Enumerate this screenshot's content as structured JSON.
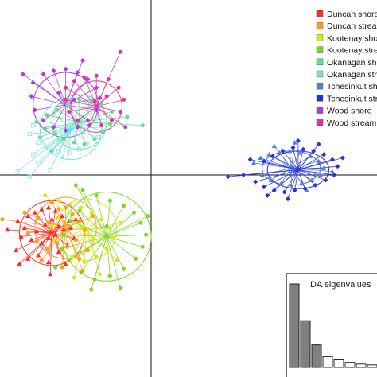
{
  "chart_data": {
    "type": "scatter",
    "grid": false,
    "axes": "crossing at origin, no tick labels",
    "legend_position": "top-right",
    "series": [
      {
        "name": "Duncan shore",
        "color": "#ff2a2a",
        "marker": "triangle",
        "centroid": [
          -2.9,
          -1.7
        ],
        "ellipse": [
          0.95,
          0.95
        ],
        "points": [
          [
            -3.9,
            -1.35
          ],
          [
            -3.6,
            -1.2
          ],
          [
            -3.4,
            -1.1
          ],
          [
            -3.2,
            -1.0
          ],
          [
            -3.0,
            -0.95
          ],
          [
            -2.8,
            -1.05
          ],
          [
            -2.6,
            -1.2
          ],
          [
            -2.4,
            -1.35
          ],
          [
            -3.8,
            -1.8
          ],
          [
            -3.5,
            -1.9
          ],
          [
            -3.2,
            -2.0
          ],
          [
            -3.0,
            -1.85
          ],
          [
            -2.8,
            -1.75
          ],
          [
            -2.55,
            -1.6
          ],
          [
            -2.35,
            -1.55
          ],
          [
            -3.95,
            -2.2
          ],
          [
            -3.6,
            -2.45
          ],
          [
            -3.3,
            -2.35
          ],
          [
            -3.0,
            -2.55
          ],
          [
            -2.7,
            -2.25
          ],
          [
            -2.45,
            -2.05
          ],
          [
            -2.25,
            -1.85
          ],
          [
            -4.2,
            -1.6
          ],
          [
            -3.7,
            -1.55
          ],
          [
            -3.1,
            -1.45
          ],
          [
            -2.9,
            -1.3
          ],
          [
            -2.7,
            -1.5
          ],
          [
            -3.35,
            -1.65
          ],
          [
            -2.5,
            -2.6
          ],
          [
            -3.85,
            -2.6
          ],
          [
            -2.2,
            -1.3
          ],
          [
            -2.95,
            -2.9
          ]
        ]
      },
      {
        "name": "Duncan stream",
        "color": "#ff9a1a",
        "marker": "circle",
        "centroid": [
          -2.5,
          -1.55
        ],
        "ellipse": [
          0.9,
          0.9
        ],
        "points": [
          [
            -4.35,
            -1.3
          ],
          [
            -3.7,
            -1.1
          ],
          [
            -3.3,
            -1.25
          ],
          [
            -3.0,
            -1.4
          ],
          [
            -2.7,
            -1.0
          ],
          [
            -2.5,
            -0.95
          ],
          [
            -2.3,
            -1.15
          ],
          [
            -2.1,
            -1.35
          ],
          [
            -1.95,
            -1.6
          ],
          [
            -2.2,
            -1.9
          ],
          [
            -2.45,
            -2.1
          ],
          [
            -2.75,
            -2.0
          ],
          [
            -3.05,
            -2.15
          ],
          [
            -3.35,
            -1.95
          ],
          [
            -3.6,
            -1.7
          ],
          [
            -1.85,
            -2.2
          ],
          [
            -2.1,
            -2.45
          ],
          [
            -2.6,
            -2.7
          ],
          [
            -3.2,
            -2.5
          ],
          [
            -1.7,
            -1.2
          ],
          [
            -2.9,
            -0.8
          ],
          [
            -2.4,
            -1.5
          ],
          [
            -2.0,
            -2.8
          ]
        ]
      },
      {
        "name": "Kootenay shore",
        "color": "#d7e81a",
        "marker": "circle",
        "centroid": [
          -1.9,
          -1.6
        ],
        "ellipse": [
          0.9,
          0.9
        ],
        "points": [
          [
            -3.1,
            -0.6
          ],
          [
            -2.7,
            -0.75
          ],
          [
            -2.35,
            -0.85
          ],
          [
            -2.05,
            -0.95
          ],
          [
            -1.75,
            -1.1
          ],
          [
            -1.45,
            -1.3
          ],
          [
            -1.2,
            -1.55
          ],
          [
            -1.1,
            -1.85
          ],
          [
            -1.3,
            -2.15
          ],
          [
            -1.6,
            -2.4
          ],
          [
            -1.95,
            -2.55
          ],
          [
            -2.3,
            -2.4
          ],
          [
            -2.6,
            -2.2
          ],
          [
            -2.85,
            -1.9
          ],
          [
            -2.9,
            -1.5
          ],
          [
            -2.75,
            -1.25
          ],
          [
            -1.5,
            -2.9
          ],
          [
            -2.25,
            -3.0
          ],
          [
            -0.9,
            -1.4
          ],
          [
            -1.0,
            -2.5
          ],
          [
            -2.05,
            -1.55
          ],
          [
            -1.7,
            -1.85
          ]
        ]
      },
      {
        "name": "Kootenay stream",
        "color": "#7ad81e",
        "marker": "circle",
        "centroid": [
          -1.3,
          -1.8
        ],
        "ellipse": [
          1.3,
          1.3
        ],
        "points": [
          [
            -2.0,
            -0.45
          ],
          [
            -1.6,
            -0.6
          ],
          [
            -1.2,
            -0.75
          ],
          [
            -0.8,
            -0.9
          ],
          [
            -0.5,
            -1.1
          ],
          [
            -0.3,
            -1.4
          ],
          [
            -0.15,
            -1.75
          ],
          [
            -0.25,
            -2.1
          ],
          [
            -0.45,
            -2.45
          ],
          [
            -0.8,
            -2.75
          ],
          [
            -1.2,
            -2.95
          ],
          [
            -1.65,
            -3.05
          ],
          [
            -2.05,
            -2.85
          ],
          [
            -2.4,
            -2.5
          ],
          [
            -2.6,
            -2.15
          ],
          [
            -2.55,
            -1.75
          ],
          [
            -2.35,
            -1.35
          ],
          [
            -2.1,
            -1.05
          ],
          [
            -0.9,
            -3.3
          ],
          [
            -1.75,
            -3.35
          ],
          [
            -2.8,
            -2.7
          ],
          [
            -0.1,
            -1.2
          ],
          [
            -2.2,
            -0.3
          ],
          [
            -1.3,
            -1.5
          ]
        ]
      },
      {
        "name": "Okanagan shore",
        "color": "#5ee08a",
        "marker": "circle",
        "centroid": [
          -2.1,
          1.55
        ],
        "ellipse": [
          0.8,
          0.8
        ],
        "points": [
          [
            -3.35,
            1.55
          ],
          [
            -3.1,
            1.35
          ],
          [
            -2.8,
            1.2
          ],
          [
            -2.55,
            1.05
          ],
          [
            -2.25,
            0.95
          ],
          [
            -1.95,
            0.9
          ],
          [
            -1.65,
            1.05
          ],
          [
            -1.4,
            1.25
          ],
          [
            -1.2,
            1.5
          ],
          [
            -1.15,
            1.85
          ],
          [
            -1.45,
            2.05
          ],
          [
            -1.75,
            2.15
          ],
          [
            -2.1,
            2.2
          ],
          [
            -2.45,
            2.05
          ],
          [
            -2.75,
            1.9
          ],
          [
            -3.05,
            1.75
          ],
          [
            -0.25,
            1.45
          ],
          [
            -0.7,
            1.7
          ],
          [
            -3.25,
            1.1
          ],
          [
            -2.9,
            0.7
          ]
        ]
      },
      {
        "name": "Okanagan stream",
        "color": "#6ee4e8",
        "marker": "square",
        "centroid": [
          -2.35,
          1.35
        ],
        "ellipse": [
          0.9,
          0.9
        ],
        "points": [
          [
            -3.55,
            1.2
          ],
          [
            -3.3,
            0.95
          ],
          [
            -3.0,
            0.8
          ],
          [
            -2.7,
            0.7
          ],
          [
            -2.4,
            0.65
          ],
          [
            -2.1,
            0.75
          ],
          [
            -1.8,
            0.9
          ],
          [
            -1.55,
            1.1
          ],
          [
            -1.4,
            1.4
          ],
          [
            -1.5,
            1.7
          ],
          [
            -1.8,
            1.85
          ],
          [
            -2.15,
            1.95
          ],
          [
            -2.5,
            1.9
          ],
          [
            -2.85,
            1.8
          ],
          [
            -3.2,
            1.6
          ],
          [
            -3.45,
            1.45
          ],
          [
            -3.9,
            0.1
          ],
          [
            -3.55,
            -0.05
          ],
          [
            -3.3,
            0.35
          ],
          [
            -2.95,
            0.15
          ],
          [
            -3.45,
            0.6
          ],
          [
            -2.6,
            0.45
          ]
        ]
      },
      {
        "name": "Tchesinkut shore",
        "color": "#4d82d6",
        "marker": "triangle",
        "centroid": [
          4.1,
          0.2
        ],
        "ellipse": [
          0.85,
          0.5
        ],
        "points": [
          [
            3.0,
            0.35
          ],
          [
            3.2,
            0.5
          ],
          [
            3.45,
            0.6
          ],
          [
            3.75,
            0.65
          ],
          [
            4.05,
            0.7
          ],
          [
            4.35,
            0.65
          ],
          [
            4.65,
            0.55
          ],
          [
            4.9,
            0.4
          ],
          [
            5.05,
            0.2
          ],
          [
            4.95,
            0.0
          ],
          [
            4.7,
            -0.15
          ],
          [
            4.4,
            -0.25
          ],
          [
            4.1,
            -0.3
          ],
          [
            3.8,
            -0.25
          ],
          [
            3.5,
            -0.15
          ],
          [
            3.25,
            0.0
          ],
          [
            5.3,
            0.1
          ],
          [
            4.55,
            -0.45
          ],
          [
            3.6,
            0.85
          ],
          [
            4.2,
            0.95
          ]
        ]
      },
      {
        "name": "Tchesinkut stream",
        "color": "#2e2ed6",
        "marker": "diamond",
        "centroid": [
          4.3,
          0.15
        ],
        "ellipse": [
          0.9,
          0.55
        ],
        "points": [
          [
            2.25,
            -0.05
          ],
          [
            2.7,
            0.0
          ],
          [
            3.05,
            -0.2
          ],
          [
            3.3,
            -0.35
          ],
          [
            3.6,
            -0.45
          ],
          [
            3.9,
            -0.5
          ],
          [
            4.2,
            -0.45
          ],
          [
            4.5,
            -0.4
          ],
          [
            4.8,
            -0.3
          ],
          [
            5.1,
            -0.15
          ],
          [
            5.35,
            0.0
          ],
          [
            5.45,
            0.25
          ],
          [
            5.3,
            0.45
          ],
          [
            5.05,
            0.6
          ],
          [
            4.75,
            0.7
          ],
          [
            4.45,
            0.75
          ],
          [
            4.15,
            0.8
          ],
          [
            3.85,
            0.7
          ],
          [
            3.55,
            0.55
          ],
          [
            3.3,
            0.4
          ],
          [
            5.6,
            0.5
          ],
          [
            2.9,
            0.45
          ],
          [
            4.3,
            1.0
          ],
          [
            4.0,
            -0.7
          ],
          [
            3.4,
            -0.6
          ],
          [
            4.9,
            0.9
          ]
        ]
      },
      {
        "name": "Wood shore",
        "color": "#b03ae0",
        "marker": "diamond",
        "centroid": [
          -2.5,
          2.05
        ],
        "ellipse": [
          0.95,
          0.95
        ],
        "points": [
          [
            -3.45,
            2.7
          ],
          [
            -3.15,
            2.95
          ],
          [
            -2.85,
            3.05
          ],
          [
            -2.5,
            3.1
          ],
          [
            -2.15,
            3.0
          ],
          [
            -1.85,
            2.8
          ],
          [
            -1.6,
            2.55
          ],
          [
            -1.5,
            2.25
          ],
          [
            -1.6,
            1.9
          ],
          [
            -1.85,
            1.6
          ],
          [
            -2.15,
            1.4
          ],
          [
            -2.5,
            1.3
          ],
          [
            -2.85,
            1.4
          ],
          [
            -3.15,
            1.6
          ],
          [
            -3.4,
            1.9
          ],
          [
            -3.5,
            2.3
          ],
          [
            -2.7,
            2.4
          ],
          [
            -2.25,
            2.2
          ],
          [
            -3.75,
            2.95
          ],
          [
            -2.0,
            3.35
          ]
        ]
      },
      {
        "name": "Wood stream",
        "color": "#e0339c",
        "marker": "circle",
        "centroid": [
          -1.6,
          2.0
        ],
        "ellipse": [
          0.75,
          0.75
        ],
        "points": [
          [
            -2.5,
            2.55
          ],
          [
            -2.25,
            2.75
          ],
          [
            -1.95,
            2.85
          ],
          [
            -1.6,
            2.9
          ],
          [
            -1.25,
            2.8
          ],
          [
            -0.95,
            2.55
          ],
          [
            -0.8,
            2.2
          ],
          [
            -0.9,
            1.85
          ],
          [
            -1.15,
            1.6
          ],
          [
            -1.45,
            1.45
          ],
          [
            -1.8,
            1.45
          ],
          [
            -2.15,
            1.6
          ],
          [
            -2.4,
            1.85
          ],
          [
            -2.5,
            2.2
          ],
          [
            -0.9,
            3.6
          ],
          [
            -0.75,
            1.4
          ],
          [
            -1.3,
            2.3
          ],
          [
            -1.65,
            2.15
          ]
        ]
      }
    ],
    "inset": {
      "title": "DA eigenvalues",
      "type": "bar",
      "values": [
        100,
        56,
        27,
        13,
        10,
        6,
        4,
        3,
        2
      ],
      "filled_bars": 3,
      "filled_color": "#808080",
      "empty_color": "#ffffff"
    }
  }
}
